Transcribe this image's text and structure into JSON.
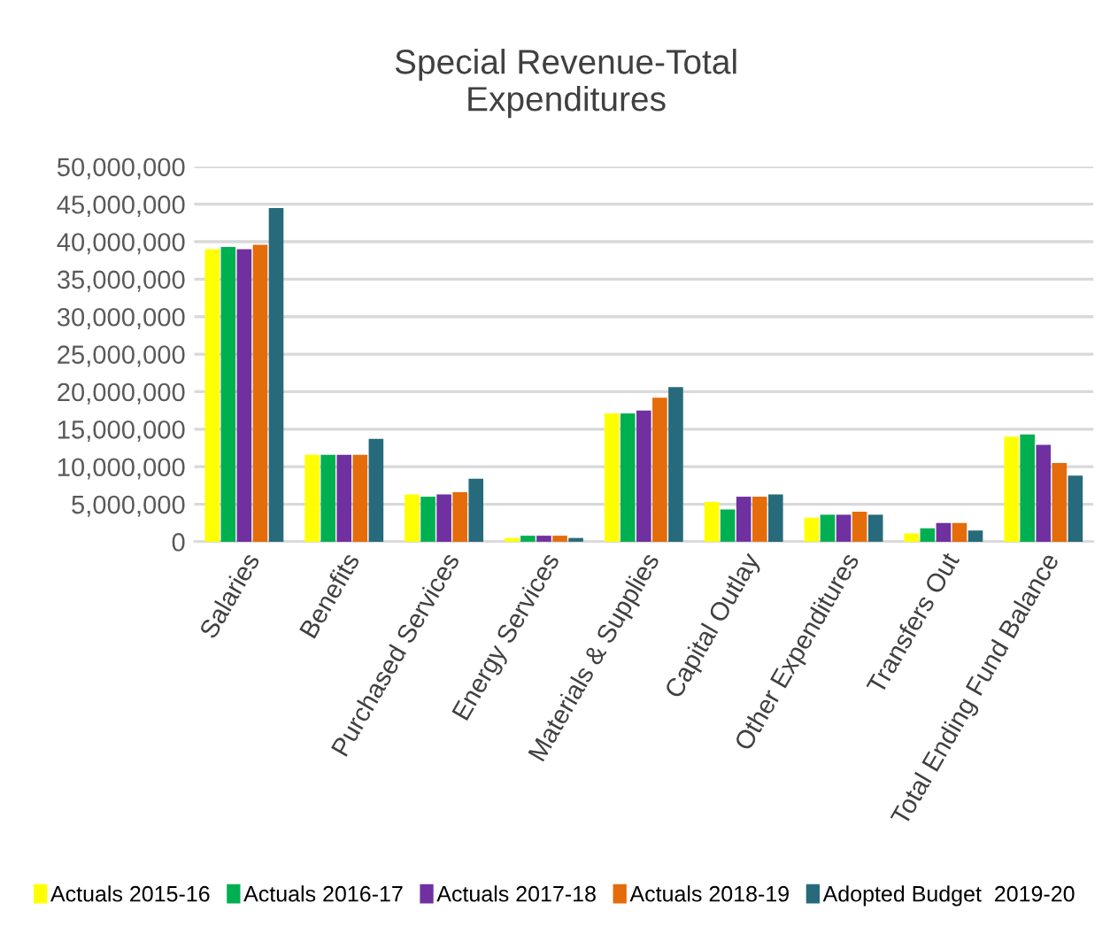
{
  "chart_data": {
    "type": "bar",
    "title": "Special Revenue-Total\nExpenditures",
    "categories": [
      "Salaries",
      "Benefits",
      "Purchased Services",
      "Energy Services",
      "Materials & Supplies",
      "Capital Outlay",
      "Other Expenditures",
      "Transfers Out",
      "Total Ending Fund Balance"
    ],
    "series": [
      {
        "name": "Actuals 2015-16",
        "color": "#ffff00",
        "values": [
          39000000,
          11600000,
          6300000,
          500000,
          17100000,
          5300000,
          3200000,
          1100000,
          14000000
        ]
      },
      {
        "name": "Actuals 2016-17",
        "color": "#00b050",
        "values": [
          39300000,
          11600000,
          6000000,
          800000,
          17100000,
          4300000,
          3600000,
          1800000,
          14300000
        ]
      },
      {
        "name": "Actuals 2017-18",
        "color": "#7030a0",
        "values": [
          39000000,
          11600000,
          6300000,
          800000,
          17500000,
          6000000,
          3600000,
          2500000,
          12900000
        ]
      },
      {
        "name": "Actuals 2018-19",
        "color": "#e46c0a",
        "values": [
          39600000,
          11600000,
          6600000,
          800000,
          19200000,
          6000000,
          4000000,
          2500000,
          10500000
        ]
      },
      {
        "name": "Adopted Budget  2019-20",
        "color": "#276a7c",
        "values": [
          44500000,
          13700000,
          8400000,
          500000,
          20600000,
          6300000,
          3600000,
          1500000,
          8800000
        ]
      }
    ],
    "ylim": [
      0,
      50000000
    ],
    "yticks": [
      {
        "value": 0,
        "label": "0"
      },
      {
        "value": 5000000,
        "label": "5,000,000"
      },
      {
        "value": 10000000,
        "label": "10,000,000"
      },
      {
        "value": 15000000,
        "label": "15,000,000"
      },
      {
        "value": 20000000,
        "label": "20,000,000"
      },
      {
        "value": 25000000,
        "label": "25,000,000"
      },
      {
        "value": 30000000,
        "label": "30,000,000"
      },
      {
        "value": 35000000,
        "label": "35,000,000"
      },
      {
        "value": 40000000,
        "label": "40,000,000"
      },
      {
        "value": 45000000,
        "label": "45,000,000"
      },
      {
        "value": 50000000,
        "label": "50,000,000"
      }
    ],
    "grid": "y",
    "legend": "bottom"
  }
}
